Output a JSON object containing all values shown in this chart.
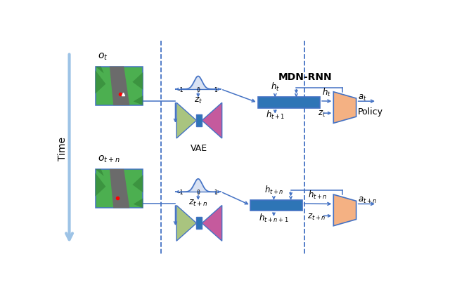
{
  "bg_color": "#ffffff",
  "arrow_color": "#4472c4",
  "dashed_color": "#4472c4",
  "rnn_color": "#2e75b6",
  "policy_color": "#f4b183",
  "vae_left_color": "#a9c47f",
  "vae_right_color": "#c55a9d",
  "vae_mid_color": "#2e75b6",
  "time_arrow_color": "#9dc3e6",
  "title_top": "MDN-RNN",
  "label_ot": "$o_t$",
  "label_otn": "$o_{t+n}$",
  "label_zt": "$z_t$",
  "label_ztn": "$z_{t+n}$",
  "label_ht": "$h_t$",
  "label_ht1": "$h_{t+1}$",
  "label_htn": "$h_{t+n}$",
  "label_htn1": "$h_{t+n+1}$",
  "label_at": "$a_t$",
  "label_atn": "$a_{t+n}$",
  "label_hpolicy": "$h_t$",
  "label_hpolicyn": "$h_{t+n}$",
  "label_ztpolicy": "$z_t$",
  "label_ztnpolicy": "$z_{t+n}$",
  "label_vae": "VAE",
  "label_policy": "Policy",
  "label_time": "Time"
}
